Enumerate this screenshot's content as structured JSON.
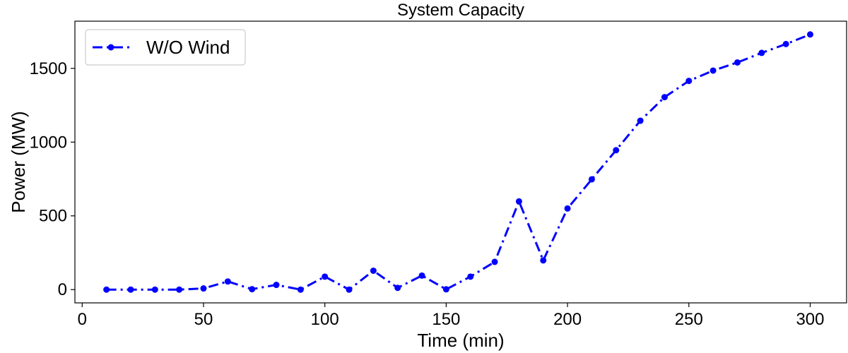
{
  "chart_data": {
    "type": "line",
    "title": "System Capacity",
    "xlabel": "Time (min)",
    "ylabel": "Power (MW)",
    "xlim": [
      -3,
      315
    ],
    "ylim": [
      -90,
      1820
    ],
    "xticks": [
      0,
      50,
      100,
      150,
      200,
      250,
      300
    ],
    "yticks": [
      0,
      500,
      1000,
      1500
    ],
    "grid": false,
    "legend_position": "top-left",
    "series": [
      {
        "name": "W/O Wind",
        "color": "#0000ff",
        "line_style": "dash-dot",
        "marker": "circle",
        "x": [
          10,
          20,
          30,
          40,
          50,
          60,
          70,
          80,
          90,
          100,
          110,
          120,
          130,
          140,
          150,
          160,
          170,
          180,
          190,
          200,
          210,
          220,
          230,
          240,
          250,
          260,
          270,
          280,
          290,
          300
        ],
        "y": [
          0,
          0,
          0,
          0,
          8,
          55,
          3,
          32,
          0,
          88,
          0,
          128,
          12,
          95,
          2,
          88,
          188,
          598,
          198,
          550,
          748,
          945,
          1145,
          1305,
          1415,
          1485,
          1540,
          1605,
          1665,
          1730
        ]
      }
    ]
  }
}
